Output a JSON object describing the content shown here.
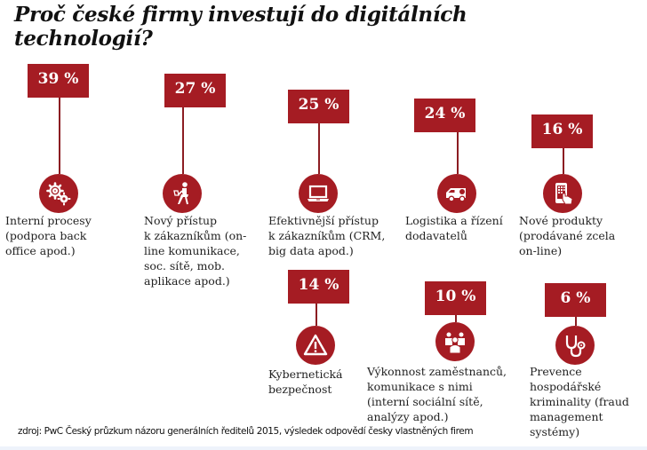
{
  "title_lines": [
    "Proč české firmy investují do digitálních",
    "technologií?"
  ],
  "accent_color": "#a51c23",
  "source": "zdroj: PwC Český průzkum názoru generálních ředitelů 2015, výsledek odpovědí česky vlastněných firem",
  "chart_data": {
    "type": "bar",
    "title": "Proč české firmy investují do digitálních technologií?",
    "unit": "%",
    "categories": [
      "Interní procesy (podpora back office apod.)",
      "Nový přístup k zákazníkům (on-line komunikace, soc. sítě, mob. aplikace apod.)",
      "Efektivnější přístup k zákazníkům (CRM, big data apod.)",
      "Logistika a řízení dodavatelů",
      "Nové produkty (prodávané zcela on-line)",
      "Kybernetická bezpečnost",
      "Výkonnost zaměstnanců, komunikace s nimi (interní sociální sítě, analýzy apod.)",
      "Prevence hospodářské kriminality (fraud management systémy)"
    ],
    "values": [
      39,
      27,
      25,
      24,
      16,
      14,
      10,
      6
    ],
    "icons": [
      "gears-icon",
      "person-laptop-icon",
      "laptop-icon",
      "van-icon",
      "smartphone-touch-icon",
      "warning-icon",
      "people-group-icon",
      "stethoscope-icon"
    ],
    "value_labels": [
      "39 %",
      "27 %",
      "25 %",
      "24 %",
      "16 %",
      "14 %",
      "10 %",
      "6 %"
    ],
    "label_lines": [
      [
        "Interní procesy",
        "(podpora back",
        "office apod.)"
      ],
      [
        "Nový přístup",
        "k zákazníkům (on-",
        "line komunikace,",
        "soc. sítě, mob.",
        "aplikace apod.)"
      ],
      [
        "Efektivnější přístup",
        "k zákazníkům (CRM,",
        "big data apod.)"
      ],
      [
        "Logistika  a řízení",
        "dodavatelů"
      ],
      [
        "Nové produkty",
        "(prodávané zcela",
        "on-line)"
      ],
      [
        "Kybernetická",
        "bezpečnost"
      ],
      [
        "Výkonnost zaměstnanců,",
        "komunikace s nimi",
        "(interní sociální sítě,",
        "analýzy apod.)"
      ],
      [
        "Prevence",
        "hospodářské",
        "kriminality (fraud",
        "management",
        "systémy)"
      ]
    ]
  }
}
